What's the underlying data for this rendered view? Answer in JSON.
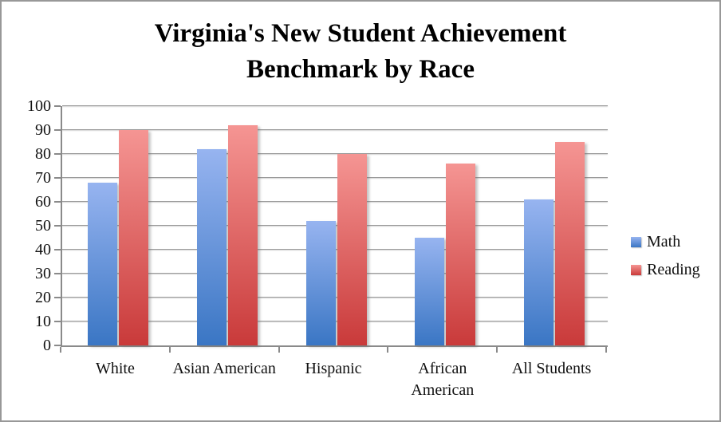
{
  "chart": {
    "title_lines": [
      "Virginia's New Student Achievement",
      "Benchmark by Race"
    ]
  },
  "chart_data": {
    "type": "bar",
    "title": "Virginia's New Student Achievement Benchmark by Race",
    "categories": [
      "White",
      "Asian American",
      "Hispanic",
      "African American",
      "All Students"
    ],
    "series": [
      {
        "name": "Math",
        "values": [
          68,
          82,
          52,
          45,
          61
        ],
        "color_top": "#97b4f0",
        "color_bottom": "#3a76c4"
      },
      {
        "name": "Reading",
        "values": [
          90,
          92,
          80,
          76,
          85
        ],
        "color_top": "#f59593",
        "color_bottom": "#c93a3a"
      }
    ],
    "xlabel": "",
    "ylabel": "",
    "ylim": [
      0,
      100
    ],
    "ytick_step": 10,
    "grid": true,
    "legend_position": "right",
    "colors": {
      "gridline": "#9b9b9b",
      "axis": "#8a8a8a",
      "frame_border": "#989898",
      "background": "#ffffff",
      "text": "#111111"
    }
  }
}
